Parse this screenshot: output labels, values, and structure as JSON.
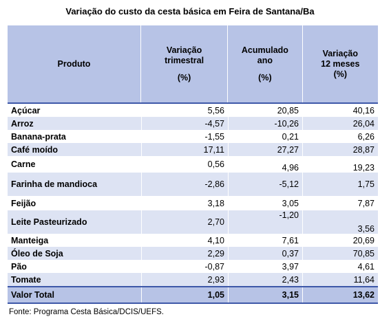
{
  "title": "Variação do custo da cesta básica em Feira de Santana/Ba",
  "headers": {
    "produto": "Produto",
    "var_trim": [
      "Variação",
      "trimestral",
      "(%)"
    ],
    "acum": [
      "Acumulado",
      "ano",
      "(%)"
    ],
    "var_12": [
      "Variação",
      "12 meses",
      "(%)"
    ]
  },
  "rows": [
    {
      "produto": "Açúcar",
      "trimestral": "5,56",
      "acumulado": "20,85",
      "doze_meses": "40,16"
    },
    {
      "produto": "Arroz",
      "trimestral": "-4,57",
      "acumulado": "-10,26",
      "doze_meses": "26,04"
    },
    {
      "produto": "Banana-prata",
      "trimestral": "-1,55",
      "acumulado": "0,21",
      "doze_meses": "6,26"
    },
    {
      "produto": "Café moído",
      "trimestral": "17,11",
      "acumulado": "27,27",
      "doze_meses": "28,87"
    },
    {
      "produto": "Carne",
      "trimestral": "0,56",
      "acumulado": "4,96",
      "doze_meses": "19,23"
    },
    {
      "produto": "Farinha de mandioca",
      "trimestral": "-2,86",
      "acumulado": "-5,12",
      "doze_meses": "1,75"
    },
    {
      "produto": "Feijão",
      "trimestral": "3,18",
      "acumulado": "3,05",
      "doze_meses": "7,87"
    },
    {
      "produto": "Leite Pasteurizado",
      "trimestral": "2,70",
      "acumulado": "-1,20",
      "doze_meses": "3,56"
    },
    {
      "produto": "Manteiga",
      "trimestral": "4,10",
      "acumulado": "7,61",
      "doze_meses": "20,69"
    },
    {
      "produto": "Óleo de Soja",
      "trimestral": "2,29",
      "acumulado": "0,37",
      "doze_meses": "70,85"
    },
    {
      "produto": "Pão",
      "trimestral": "-0,87",
      "acumulado": "3,97",
      "doze_meses": "4,61"
    },
    {
      "produto": "Tomate",
      "trimestral": "2,93",
      "acumulado": "2,43",
      "doze_meses": "11,64"
    }
  ],
  "total": {
    "label": "Valor Total",
    "trimestral": "1,05",
    "acumulado": "3,15",
    "doze_meses": "13,62"
  },
  "source": "Fonte: Programa Cesta Básica/DCIS/UEFS.",
  "colors": {
    "header_bg": "#b7c3e6",
    "alt_row_bg": "#dde3f3",
    "rule": "#3d57a8"
  }
}
